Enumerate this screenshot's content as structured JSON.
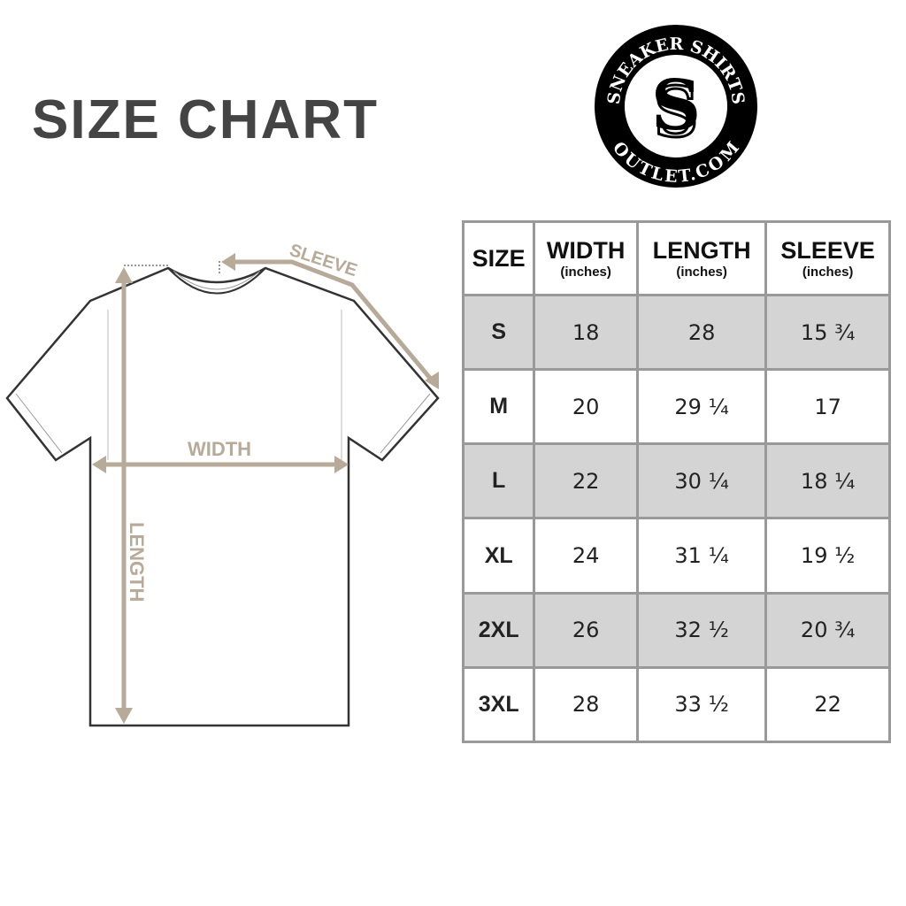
{
  "title": "SIZE CHART",
  "logo": {
    "top_text": "SNEAKER SHIRTS",
    "bottom_text": "OUTLET.COM"
  },
  "diagram": {
    "sleeve_label": "SLEEVE",
    "width_label": "WIDTH",
    "length_label": "LENGTH",
    "arrow_color": "#b7aa98"
  },
  "table": {
    "headers": [
      {
        "label": "SIZE",
        "unit": ""
      },
      {
        "label": "WIDTH",
        "unit": "(inches)"
      },
      {
        "label": "LENGTH",
        "unit": "(inches)"
      },
      {
        "label": "SLEEVE",
        "unit": "(inches)"
      }
    ],
    "rows": [
      [
        "S",
        "18",
        "28",
        "15 ¾"
      ],
      [
        "M",
        "20",
        "29 ¼",
        "17"
      ],
      [
        "L",
        "22",
        "30 ¼",
        "18 ¼"
      ],
      [
        "XL",
        "24",
        "31 ¼",
        "19 ½"
      ],
      [
        "2XL",
        "26",
        "32 ½",
        "20 ¾"
      ],
      [
        "3XL",
        "28",
        "33 ½",
        "22"
      ]
    ]
  }
}
